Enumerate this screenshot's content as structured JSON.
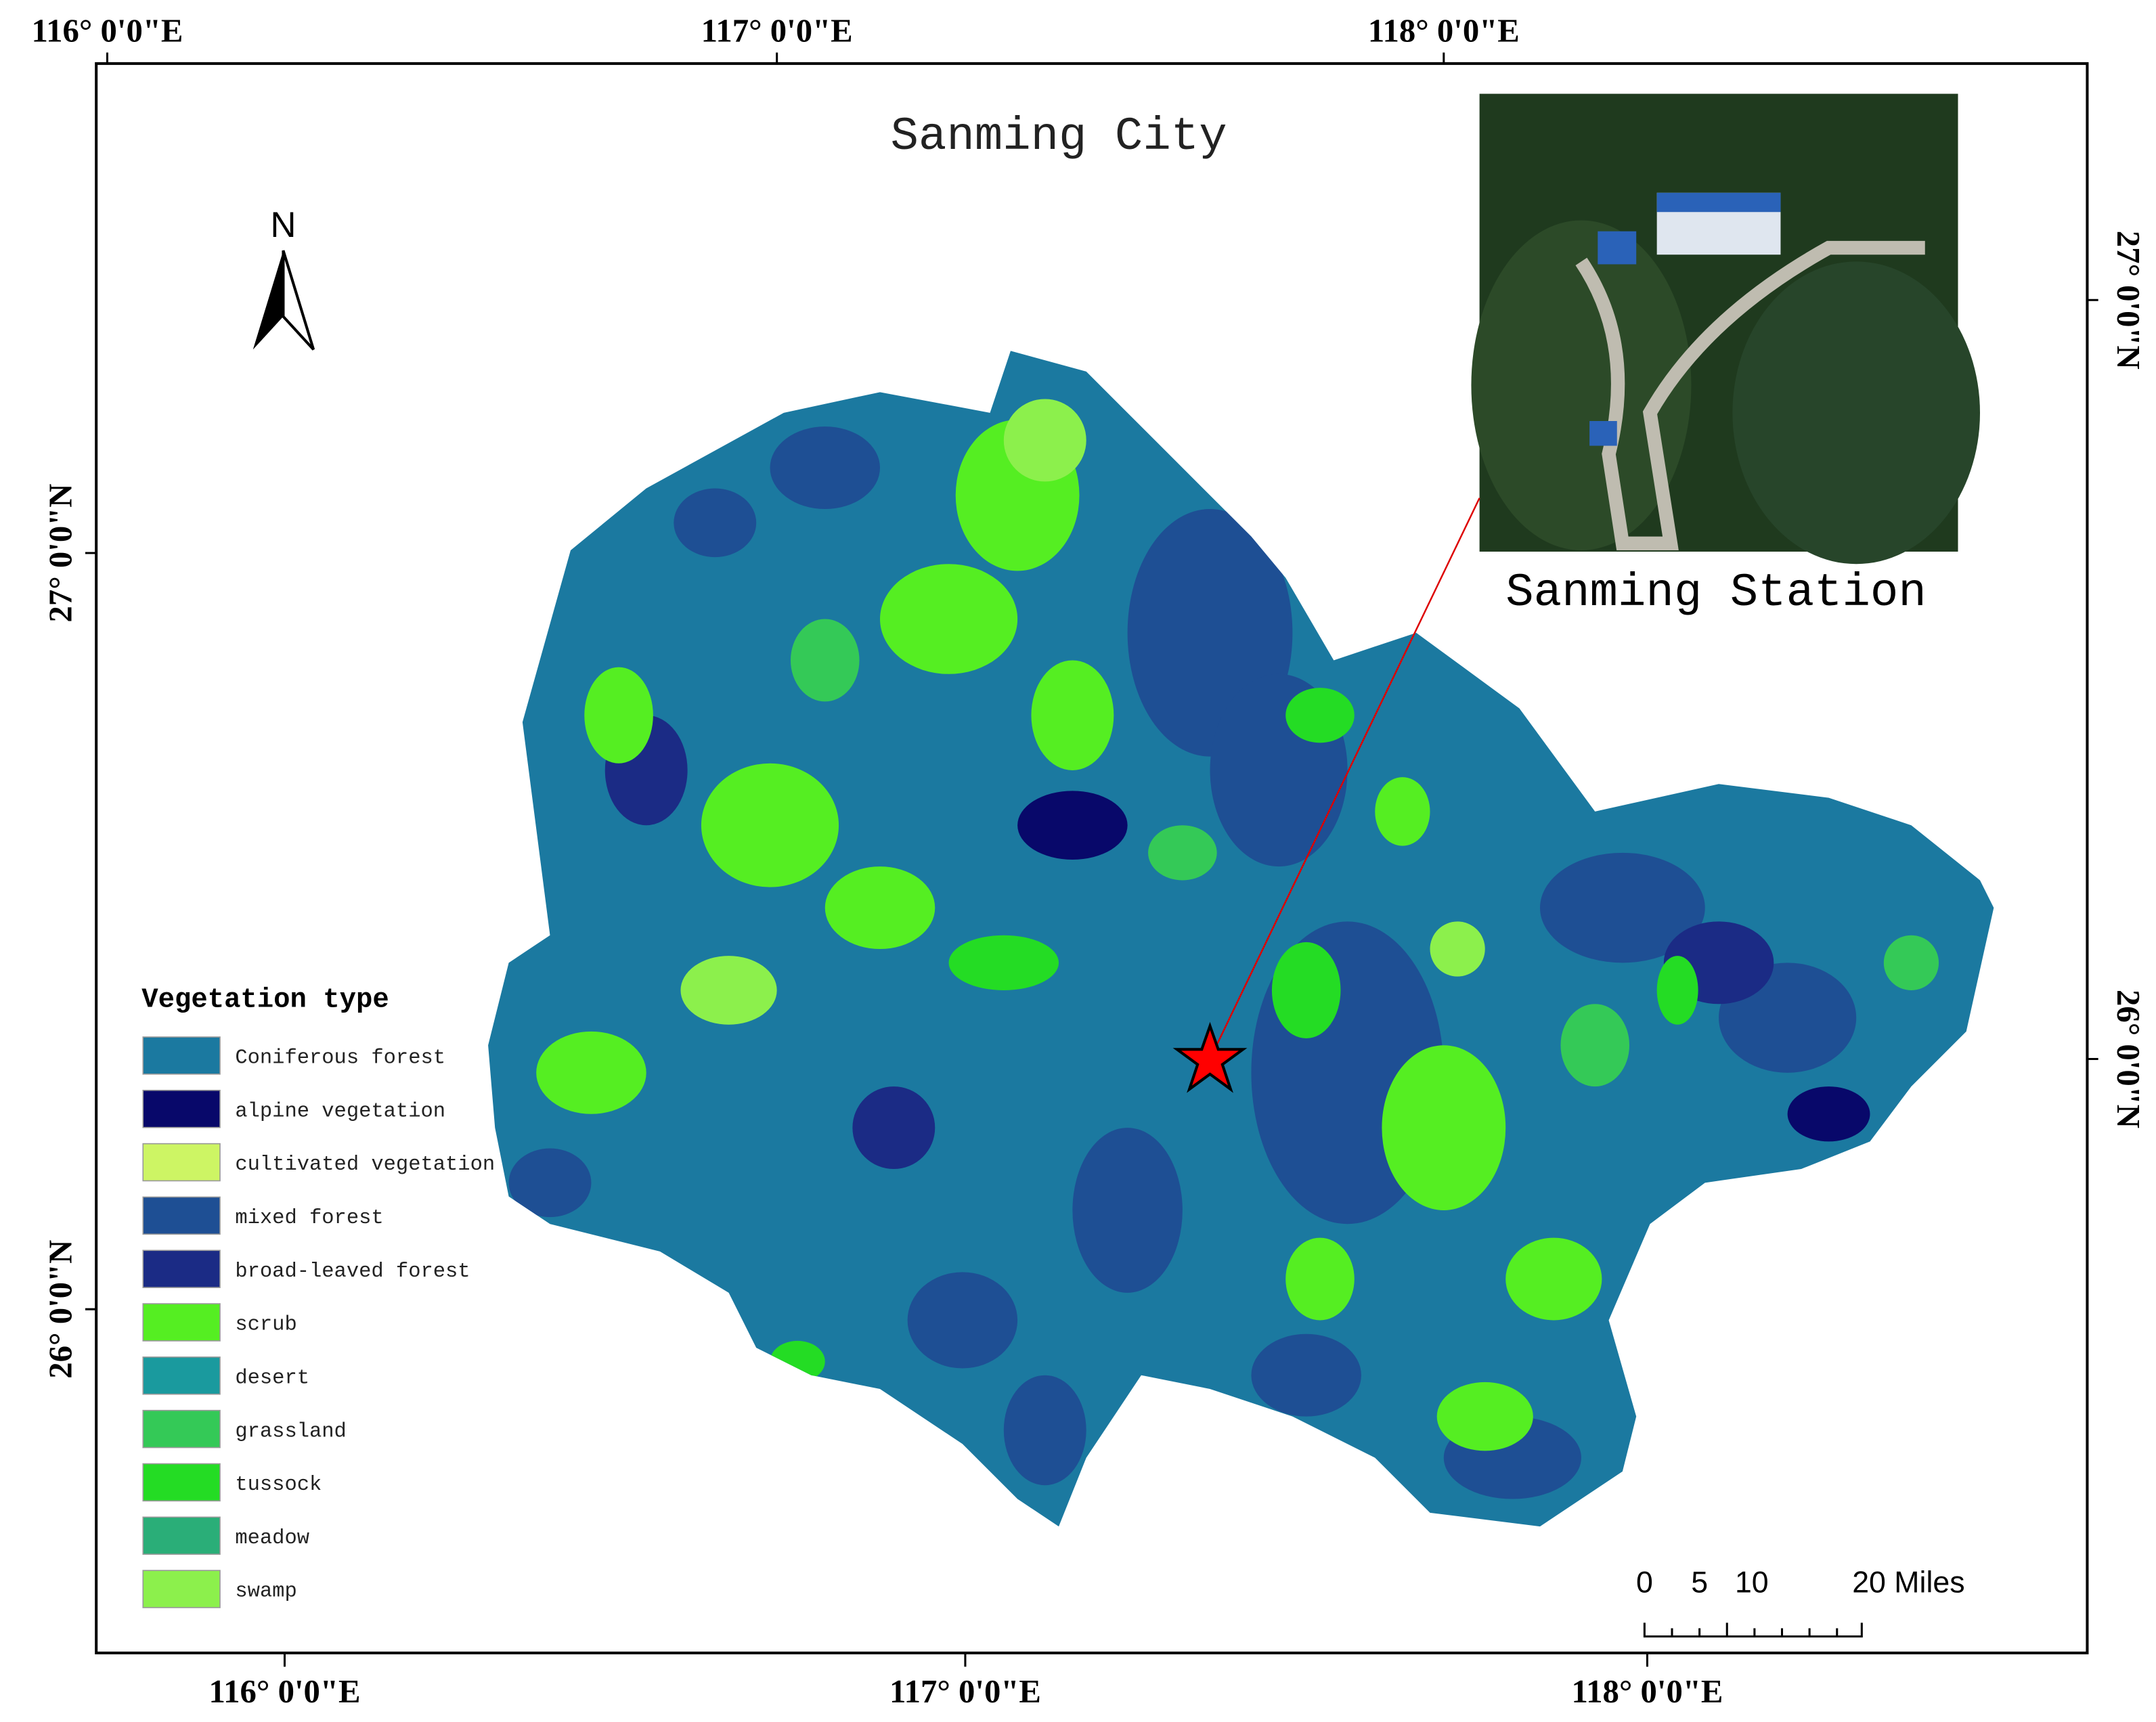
{
  "title": "Sanming City",
  "inset": {
    "caption": "Sanming Station"
  },
  "north_arrow": "N",
  "graticule": {
    "top": [
      "116° 0'0\"E",
      "117° 0'0\"E",
      "118° 0'0\"E"
    ],
    "bottom": [
      "116° 0'0\"E",
      "117° 0'0\"E",
      "118° 0'0\"E"
    ],
    "left": [
      "27° 0'0\"N",
      "26° 0'0\"N"
    ],
    "right": [
      "27° 0'0\"N",
      "26° 0'0\"N"
    ]
  },
  "legend": {
    "title": "Vegetation type",
    "items": [
      {
        "label": "Coniferous forest",
        "color": "#1b79a0"
      },
      {
        "label": "alpine vegetation",
        "color": "#08086a"
      },
      {
        "label": "cultivated vegetation",
        "color": "#cdf564"
      },
      {
        "label": "mixed forest",
        "color": "#1e4f94"
      },
      {
        "label": "broad-leaved forest",
        "color": "#1b2b85"
      },
      {
        "label": "scrub",
        "color": "#55ee22"
      },
      {
        "label": "desert",
        "color": "#1a9a9e"
      },
      {
        "label": "grassland",
        "color": "#34c957"
      },
      {
        "label": "tussock",
        "color": "#24dc24"
      },
      {
        "label": "meadow",
        "color": "#2aae78"
      },
      {
        "label": "swamp",
        "color": "#8cf04c"
      }
    ]
  },
  "scale_bar": {
    "labels": [
      "0",
      "5",
      "10",
      "20 Miles"
    ]
  }
}
